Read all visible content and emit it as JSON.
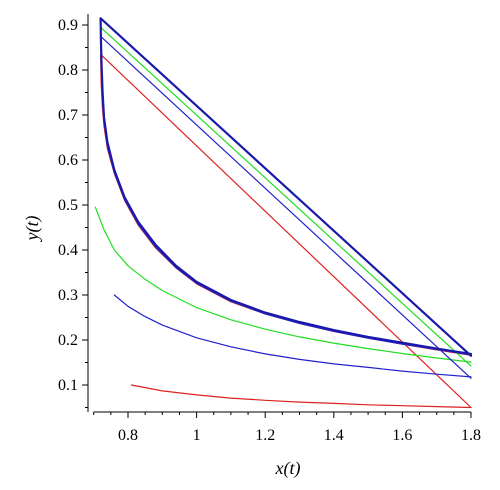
{
  "chart_data": {
    "type": "line",
    "title": "",
    "xlabel": "x(t)",
    "ylabel": "y(t)",
    "xlim": [
      0.7,
      1.8
    ],
    "ylim": [
      0.04,
      0.92
    ],
    "xticks": [
      0.8,
      1,
      1.2,
      1.4,
      1.6,
      1.8
    ],
    "xtick_labels": [
      "0.8",
      "1",
      "1.2",
      "1.4",
      "1.6",
      "1.8"
    ],
    "yticks": [
      0.1,
      0.2,
      0.3,
      0.4,
      0.5,
      0.6,
      0.7,
      0.8,
      0.9
    ],
    "ytick_labels": [
      "0.1",
      "0.2",
      "0.3",
      "0.4",
      "0.5",
      "0.6",
      "0.7",
      "0.8",
      "0.9"
    ],
    "grid": false,
    "legend": "none",
    "series": [
      {
        "color": "#dd2222",
        "width": 1.2,
        "points": [
          [
            0.81,
            0.1
          ],
          [
            0.9,
            0.087
          ],
          [
            1.0,
            0.078
          ],
          [
            1.1,
            0.071
          ],
          [
            1.2,
            0.066
          ],
          [
            1.3,
            0.062
          ],
          [
            1.4,
            0.059
          ],
          [
            1.5,
            0.056
          ],
          [
            1.6,
            0.054
          ],
          [
            1.7,
            0.052
          ],
          [
            1.8,
            0.05
          ]
        ]
      },
      {
        "color": "#dd2222",
        "width": 1.2,
        "points": [
          [
            1.8,
            0.05
          ],
          [
            0.72,
            0.835
          ],
          [
            0.721,
            0.8
          ],
          [
            0.722,
            0.77
          ],
          [
            0.725,
            0.72
          ],
          [
            0.73,
            0.675
          ],
          [
            0.74,
            0.625
          ],
          [
            0.76,
            0.57
          ],
          [
            0.79,
            0.51
          ],
          [
            0.83,
            0.455
          ],
          [
            0.88,
            0.405
          ],
          [
            0.94,
            0.36
          ],
          [
            1.0,
            0.325
          ],
          [
            1.1,
            0.285
          ],
          [
            1.2,
            0.258
          ],
          [
            1.3,
            0.237
          ],
          [
            1.4,
            0.219
          ],
          [
            1.5,
            0.204
          ],
          [
            1.6,
            0.191
          ],
          [
            1.7,
            0.178
          ],
          [
            1.8,
            0.166
          ]
        ]
      },
      {
        "color": "#22dd22",
        "width": 1.2,
        "points": [
          [
            0.705,
            0.495
          ],
          [
            0.73,
            0.445
          ],
          [
            0.76,
            0.4
          ],
          [
            0.8,
            0.365
          ],
          [
            0.85,
            0.335
          ],
          [
            0.9,
            0.31
          ],
          [
            1.0,
            0.272
          ],
          [
            1.1,
            0.245
          ],
          [
            1.2,
            0.224
          ],
          [
            1.3,
            0.207
          ],
          [
            1.4,
            0.193
          ],
          [
            1.5,
            0.181
          ],
          [
            1.6,
            0.17
          ],
          [
            1.7,
            0.16
          ],
          [
            1.8,
            0.151
          ]
        ]
      },
      {
        "color": "#22dd22",
        "width": 1.2,
        "points": [
          [
            1.8,
            0.142
          ],
          [
            0.72,
            0.895
          ],
          [
            0.721,
            0.86
          ],
          [
            0.723,
            0.8
          ],
          [
            0.726,
            0.74
          ],
          [
            0.73,
            0.69
          ],
          [
            0.74,
            0.635
          ],
          [
            0.76,
            0.575
          ],
          [
            0.79,
            0.515
          ],
          [
            0.83,
            0.46
          ],
          [
            0.88,
            0.41
          ],
          [
            0.94,
            0.363
          ],
          [
            1.0,
            0.327
          ],
          [
            1.1,
            0.287
          ],
          [
            1.2,
            0.259
          ],
          [
            1.3,
            0.238
          ],
          [
            1.4,
            0.22
          ],
          [
            1.5,
            0.205
          ],
          [
            1.6,
            0.192
          ],
          [
            1.7,
            0.18
          ],
          [
            1.8,
            0.168
          ]
        ]
      },
      {
        "color": "#2222cc",
        "width": 1.2,
        "points": [
          [
            0.76,
            0.3
          ],
          [
            0.8,
            0.275
          ],
          [
            0.85,
            0.252
          ],
          [
            0.9,
            0.233
          ],
          [
            1.0,
            0.205
          ],
          [
            1.1,
            0.185
          ],
          [
            1.2,
            0.169
          ],
          [
            1.3,
            0.157
          ],
          [
            1.4,
            0.147
          ],
          [
            1.5,
            0.139
          ],
          [
            1.6,
            0.131
          ],
          [
            1.7,
            0.124
          ],
          [
            1.8,
            0.118
          ]
        ]
      },
      {
        "color": "#2222cc",
        "width": 1.2,
        "points": [
          [
            1.8,
            0.115
          ],
          [
            0.72,
            0.875
          ],
          [
            0.721,
            0.84
          ],
          [
            0.723,
            0.79
          ],
          [
            0.726,
            0.735
          ],
          [
            0.73,
            0.685
          ],
          [
            0.74,
            0.63
          ],
          [
            0.76,
            0.572
          ],
          [
            0.79,
            0.512
          ],
          [
            0.83,
            0.457
          ],
          [
            0.88,
            0.407
          ],
          [
            0.94,
            0.361
          ],
          [
            1.0,
            0.326
          ],
          [
            1.1,
            0.286
          ],
          [
            1.2,
            0.258
          ],
          [
            1.3,
            0.237
          ],
          [
            1.4,
            0.219
          ],
          [
            1.5,
            0.204
          ],
          [
            1.6,
            0.191
          ],
          [
            1.7,
            0.179
          ],
          [
            1.8,
            0.167
          ]
        ]
      },
      {
        "color": "#1a1aaa",
        "width": 2.2,
        "points": [
          [
            1.8,
            0.165
          ],
          [
            0.72,
            0.915
          ],
          [
            0.721,
            0.87
          ],
          [
            0.723,
            0.81
          ],
          [
            0.726,
            0.75
          ],
          [
            0.73,
            0.695
          ],
          [
            0.74,
            0.64
          ],
          [
            0.76,
            0.578
          ],
          [
            0.79,
            0.517
          ],
          [
            0.83,
            0.462
          ],
          [
            0.88,
            0.412
          ],
          [
            0.94,
            0.365
          ],
          [
            1.0,
            0.329
          ],
          [
            1.1,
            0.289
          ],
          [
            1.2,
            0.261
          ],
          [
            1.3,
            0.24
          ],
          [
            1.4,
            0.222
          ],
          [
            1.5,
            0.207
          ],
          [
            1.6,
            0.194
          ],
          [
            1.7,
            0.181
          ],
          [
            1.8,
            0.169
          ]
        ]
      }
    ]
  }
}
